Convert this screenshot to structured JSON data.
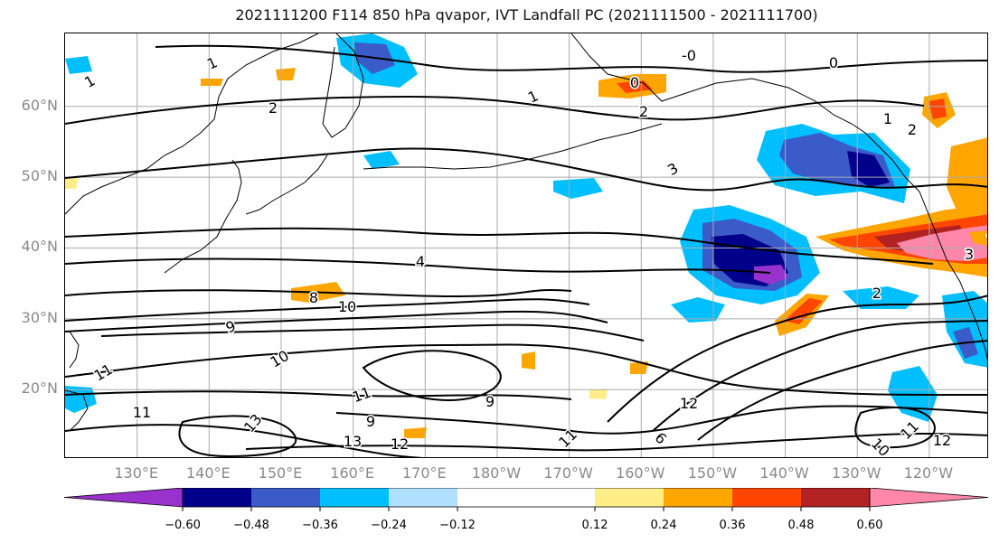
{
  "title": "2021111200 F114 850 hPa qvapor, IVT Landfall PC (2021111500 - 2021111700)",
  "map": {
    "lat_labels": [
      {
        "text": "60°N",
        "lat": 60
      },
      {
        "text": "50°N",
        "lat": 50
      },
      {
        "text": "40°N",
        "lat": 40
      },
      {
        "text": "30°N",
        "lat": 30
      },
      {
        "text": "20°N",
        "lat": 20
      }
    ],
    "lon_labels": [
      {
        "text": "130°E",
        "lon": 130
      },
      {
        "text": "140°E",
        "lon": 140
      },
      {
        "text": "150°E",
        "lon": 150
      },
      {
        "text": "160°E",
        "lon": 160
      },
      {
        "text": "170°E",
        "lon": 170
      },
      {
        "text": "180°W",
        "lon": 180
      },
      {
        "text": "170°W",
        "lon": 190
      },
      {
        "text": "160°W",
        "lon": 200
      },
      {
        "text": "150°W",
        "lon": 210
      },
      {
        "text": "140°W",
        "lon": 220
      },
      {
        "text": "130°W",
        "lon": 230
      },
      {
        "text": "120°W",
        "lon": 240
      }
    ],
    "contour_labels": [
      {
        "text": "1"
      },
      {
        "text": "1"
      },
      {
        "text": "2"
      },
      {
        "text": "2"
      },
      {
        "text": "0"
      },
      {
        "text": "0"
      },
      {
        "text": "-0"
      },
      {
        "text": "1"
      },
      {
        "text": "3"
      },
      {
        "text": "1"
      },
      {
        "text": "4"
      },
      {
        "text": "8"
      },
      {
        "text": "10"
      },
      {
        "text": "9"
      },
      {
        "text": "10"
      },
      {
        "text": "11"
      },
      {
        "text": "11"
      },
      {
        "text": "13"
      },
      {
        "text": "9"
      },
      {
        "text": "13"
      },
      {
        "text": "12"
      },
      {
        "text": "9"
      },
      {
        "text": "11"
      },
      {
        "text": "12"
      },
      {
        "text": "6"
      },
      {
        "text": "2"
      },
      {
        "text": "3"
      },
      {
        "text": "10"
      },
      {
        "text": "11"
      },
      {
        "text": "12"
      },
      {
        "text": "9"
      },
      {
        "text": "2"
      },
      {
        "text": "11"
      }
    ]
  },
  "colorbar": {
    "levels": [
      -0.72,
      -0.6,
      -0.48,
      -0.36,
      -0.24,
      -0.12,
      0.12,
      0.24,
      0.36,
      0.48,
      0.6,
      0.72
    ],
    "tick_labels": [
      {
        "text": "−0.60",
        "value": -0.6
      },
      {
        "text": "−0.48",
        "value": -0.48
      },
      {
        "text": "−0.36",
        "value": -0.36
      },
      {
        "text": "−0.24",
        "value": -0.24
      },
      {
        "text": "−0.12",
        "value": -0.12
      },
      {
        "text": "0.12",
        "value": 0.12
      },
      {
        "text": "0.24",
        "value": 0.24
      },
      {
        "text": "0.36",
        "value": 0.36
      },
      {
        "text": "0.48",
        "value": 0.48
      },
      {
        "text": "0.60",
        "value": 0.6
      }
    ],
    "colors": [
      "#9932cc",
      "#00008b",
      "#3a5bc8",
      "#00bfff",
      "#b0e0ff",
      "#ffffff",
      "#ffee88",
      "#ffa500",
      "#ff4500",
      "#b22222",
      "#ff88aa"
    ]
  }
}
